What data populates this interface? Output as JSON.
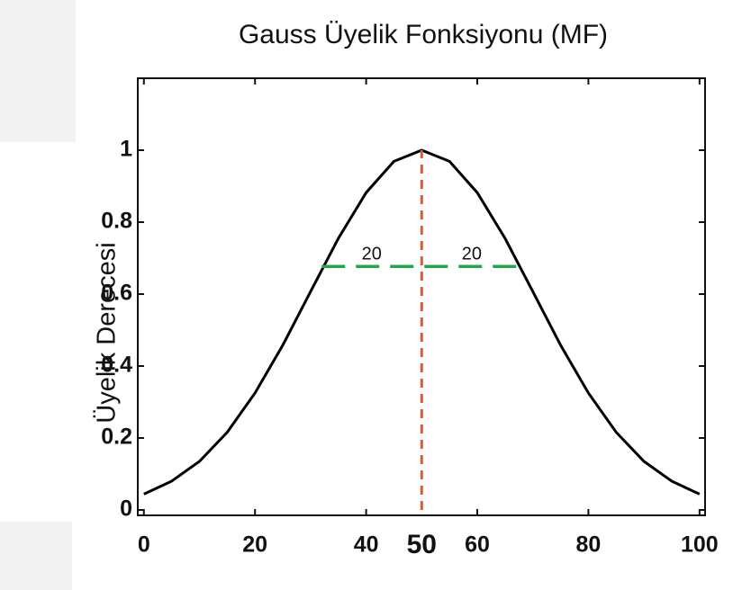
{
  "chart_data": {
    "type": "line",
    "title": "Gauss Üyelik Fonksiyonu (MF)",
    "ylabel": "Üyelik Derecesi",
    "x": [
      0,
      5,
      10,
      15,
      20,
      25,
      30,
      35,
      40,
      45,
      50,
      55,
      60,
      65,
      70,
      75,
      80,
      85,
      90,
      95,
      100
    ],
    "series": [
      {
        "color": "#000000",
        "values": [
          0.044,
          0.08,
          0.135,
          0.216,
          0.325,
          0.458,
          0.607,
          0.755,
          0.882,
          0.969,
          1,
          0.969,
          0.882,
          0.755,
          0.607,
          0.458,
          0.325,
          0.216,
          0.135,
          0.08,
          0.044
        ]
      }
    ],
    "xlim": [
      -1.1,
      101
    ],
    "ylim": [
      -0.015,
      1.2
    ],
    "xticks": [
      0,
      20,
      40,
      60,
      80,
      100
    ],
    "yticks": [
      0,
      0.2,
      0.4,
      0.6,
      0.8,
      1
    ],
    "annotations": {
      "center_line": {
        "x": 50,
        "y": [
          0,
          1
        ],
        "label": "50",
        "color": "#e05a33"
      },
      "width_line": {
        "y": 0.677,
        "x": [
          32,
          68
        ],
        "labels": [
          "20",
          "20"
        ],
        "color": "#22a84a"
      }
    }
  }
}
